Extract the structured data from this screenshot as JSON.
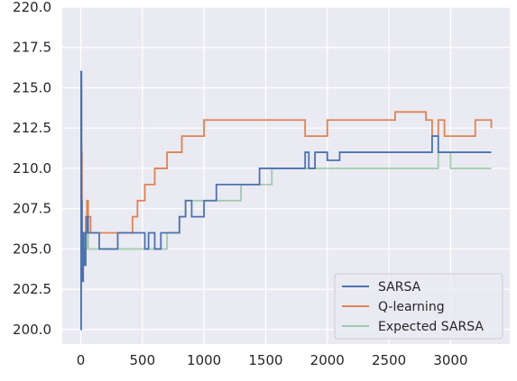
{
  "chart_data": {
    "type": "line",
    "title": "",
    "xlabel": "",
    "ylabel": "",
    "xlim": [
      -150,
      3480
    ],
    "ylim": [
      199.1,
      220.0
    ],
    "xticks": [
      0,
      500,
      1000,
      1500,
      2000,
      2500,
      3000
    ],
    "xtick_labels": [
      "0",
      "500",
      "1000",
      "1500",
      "2000",
      "2500",
      "3000"
    ],
    "yticks": [
      200.0,
      202.5,
      205.0,
      207.5,
      210.0,
      212.5,
      215.0,
      217.5,
      220.0
    ],
    "ytick_labels": [
      "200.0",
      "202.5",
      "205.0",
      "207.5",
      "210.0",
      "212.5",
      "215.0",
      "217.5",
      "220.0"
    ],
    "grid": true,
    "background": "#eaeaf2",
    "legend_position": "lower-right",
    "series": [
      {
        "name": "SARSA",
        "color": "#4c72b0",
        "opacity": 1.0,
        "x": [
          0,
          3,
          6,
          10,
          15,
          20,
          25,
          30,
          40,
          50,
          60,
          80,
          100,
          120,
          150,
          200,
          300,
          400,
          500,
          520,
          550,
          600,
          650,
          700,
          800,
          850,
          900,
          1000,
          1050,
          1100,
          1200,
          1300,
          1400,
          1450,
          1500,
          1600,
          1700,
          1800,
          1820,
          1850,
          1900,
          2000,
          2100,
          2200,
          2500,
          2800,
          2850,
          2900,
          2950,
          3000,
          3100,
          3200,
          3330
        ],
        "y": [
          200,
          216,
          208,
          205,
          203,
          206,
          205,
          204,
          206,
          207,
          206,
          206,
          206,
          206,
          205,
          205,
          206,
          206,
          206,
          205,
          206,
          205,
          206,
          206,
          207,
          208,
          207,
          208,
          208,
          209,
          209,
          209,
          209,
          210,
          210,
          210,
          210,
          210,
          211,
          210,
          211,
          210.5,
          211,
          211,
          211,
          211,
          212,
          211,
          211,
          211,
          211,
          211,
          211
        ]
      },
      {
        "name": "Q-learning",
        "color": "#dd8452",
        "opacity": 1.0,
        "x": [
          0,
          3,
          6,
          10,
          15,
          20,
          30,
          40,
          50,
          60,
          80,
          100,
          150,
          200,
          300,
          380,
          420,
          460,
          520,
          600,
          640,
          700,
          780,
          820,
          900,
          980,
          1000,
          1080,
          1200,
          1280,
          1350,
          1500,
          1800,
          1820,
          2000,
          2500,
          2550,
          2800,
          2850,
          2900,
          2950,
          3000,
          3100,
          3200,
          3330
        ],
        "y": [
          201,
          215,
          211,
          206,
          204,
          206,
          206,
          207,
          208,
          207,
          206,
          206,
          206,
          206,
          206,
          206,
          207,
          208,
          209,
          210,
          210,
          211,
          211,
          212,
          212,
          212,
          213,
          213,
          213,
          213,
          213,
          213,
          213,
          212,
          213,
          213,
          213.5,
          213,
          212,
          213,
          212,
          212,
          212,
          213,
          212.5
        ]
      },
      {
        "name": "Expected SARSA",
        "color": "#55a868",
        "opacity": 0.5,
        "x": [
          0,
          3,
          6,
          10,
          15,
          20,
          25,
          30,
          40,
          50,
          60,
          80,
          100,
          150,
          200,
          300,
          400,
          500,
          600,
          700,
          800,
          850,
          900,
          1000,
          1050,
          1100,
          1200,
          1300,
          1400,
          1500,
          1550,
          1600,
          1800,
          2000,
          2500,
          2800,
          2900,
          3000,
          3100,
          3200,
          3330
        ],
        "y": [
          200,
          211.5,
          208,
          204,
          206,
          205,
          206,
          204,
          205,
          206,
          205,
          205,
          205,
          205,
          205,
          205,
          205,
          205,
          205,
          206,
          207,
          208,
          208,
          208,
          208,
          208,
          208,
          209,
          209,
          209,
          210,
          210,
          210,
          210,
          210,
          210,
          211,
          210,
          210,
          210,
          210
        ]
      }
    ]
  }
}
